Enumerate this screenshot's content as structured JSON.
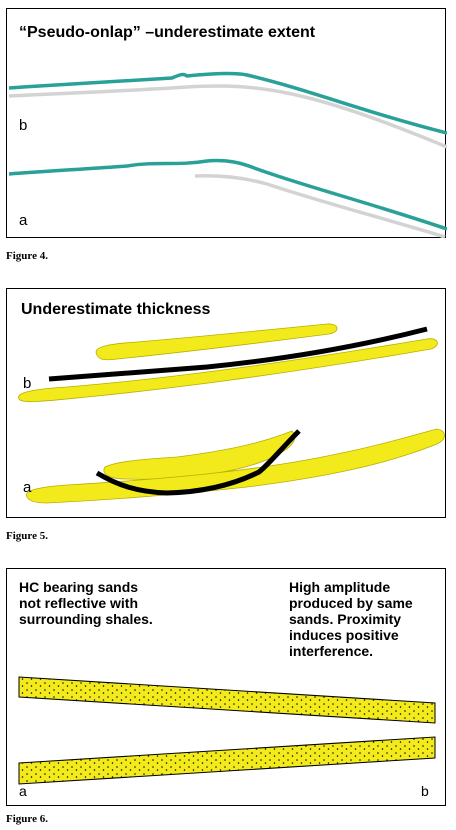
{
  "figure4": {
    "title": "“Pseudo-onlap” –underestimate extent",
    "label_b": "b",
    "label_a": "a",
    "caption": "Figure 4.",
    "colors": {
      "horizon": "#2aa198",
      "ghost": "#d3d3d3"
    }
  },
  "figure5": {
    "title": "Underestimate thickness",
    "label_b": "b",
    "label_a": "a",
    "caption": "Figure 5.",
    "colors": {
      "sand": "#f2ea1a",
      "reflector": "#000000"
    }
  },
  "figure6": {
    "note_left": "HC bearing sands\nnot reflective with\nsurrounding shales.",
    "note_right": "High amplitude\nproduced by same\nsands. Proximity\ninduces positive\ninterference.",
    "label_a": "a",
    "label_b": "b",
    "caption": "Figure 6.",
    "colors": {
      "sand": "#f2ea1a"
    }
  }
}
